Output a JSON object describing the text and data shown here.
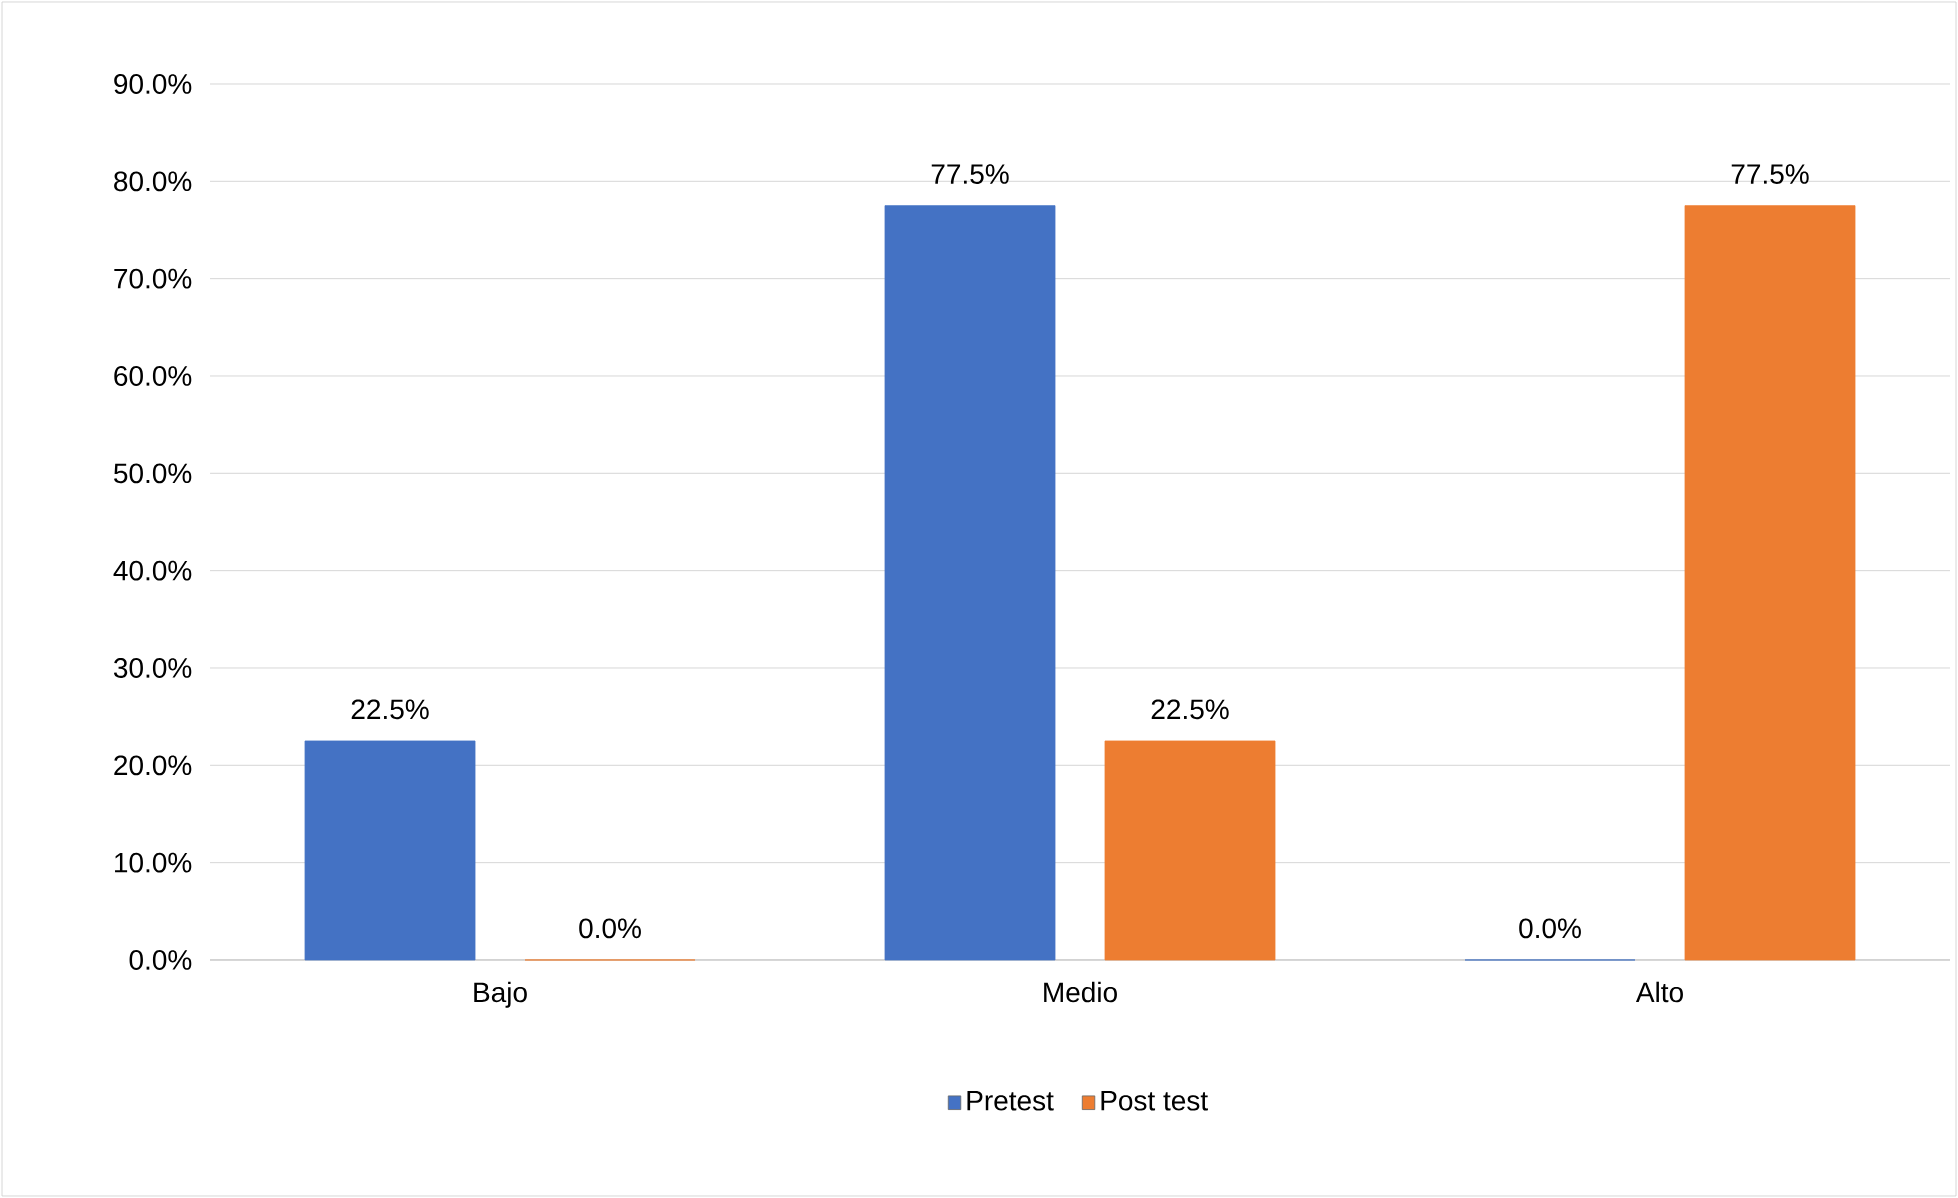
{
  "chart_data": {
    "type": "bar",
    "categories": [
      "Bajo",
      "Medio",
      "Alto"
    ],
    "series": [
      {
        "name": "Pretest",
        "color": "#4472c4",
        "values": [
          22.5,
          77.5,
          0
        ],
        "value_labels": [
          "22.5%",
          "77.5%",
          "0.0%"
        ]
      },
      {
        "name": "Post test",
        "color": "#ed7d31",
        "values": [
          0,
          22.5,
          77.5
        ],
        "value_labels": [
          "0.0%",
          "22.5%",
          "77.5%"
        ]
      }
    ],
    "ylim": [
      0,
      90
    ],
    "yticks": [
      {
        "value": 0,
        "label": "0.0%"
      },
      {
        "value": 10,
        "label": "10.0%"
      },
      {
        "value": 20,
        "label": "20.0%"
      },
      {
        "value": 30,
        "label": "30.0%"
      },
      {
        "value": 40,
        "label": "40.0%"
      },
      {
        "value": 50,
        "label": "50.0%"
      },
      {
        "value": 60,
        "label": "60.0%"
      },
      {
        "value": 70,
        "label": "70.0%"
      },
      {
        "value": 80,
        "label": "80.0%"
      },
      {
        "value": 90,
        "label": "90.0%"
      }
    ],
    "grid": "y",
    "legend": "bottom"
  }
}
